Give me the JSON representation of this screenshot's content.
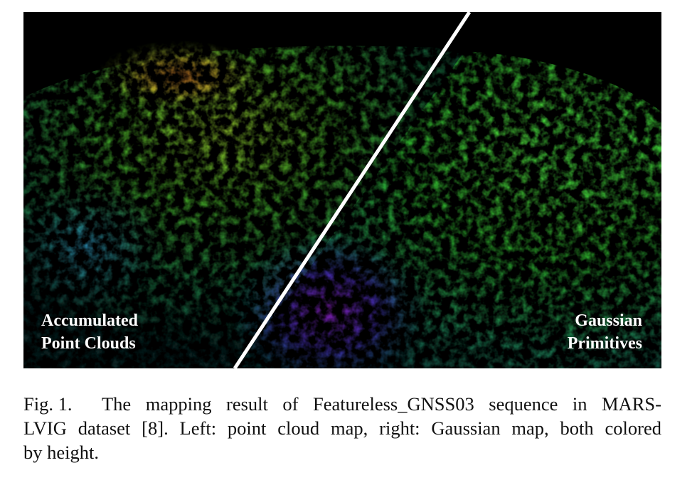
{
  "figure": {
    "left_label": [
      "Accumulated",
      "Point Clouds"
    ],
    "right_label": [
      "Gaussian",
      "Primitives"
    ]
  },
  "caption": {
    "label": "Fig. 1.",
    "lines": [
      "The mapping result of Featureless_GNSS03 sequence in MARS-",
      "LVIG dataset [8]. Left: point cloud map, right: Gaussian map, both colored",
      "by height."
    ]
  }
}
